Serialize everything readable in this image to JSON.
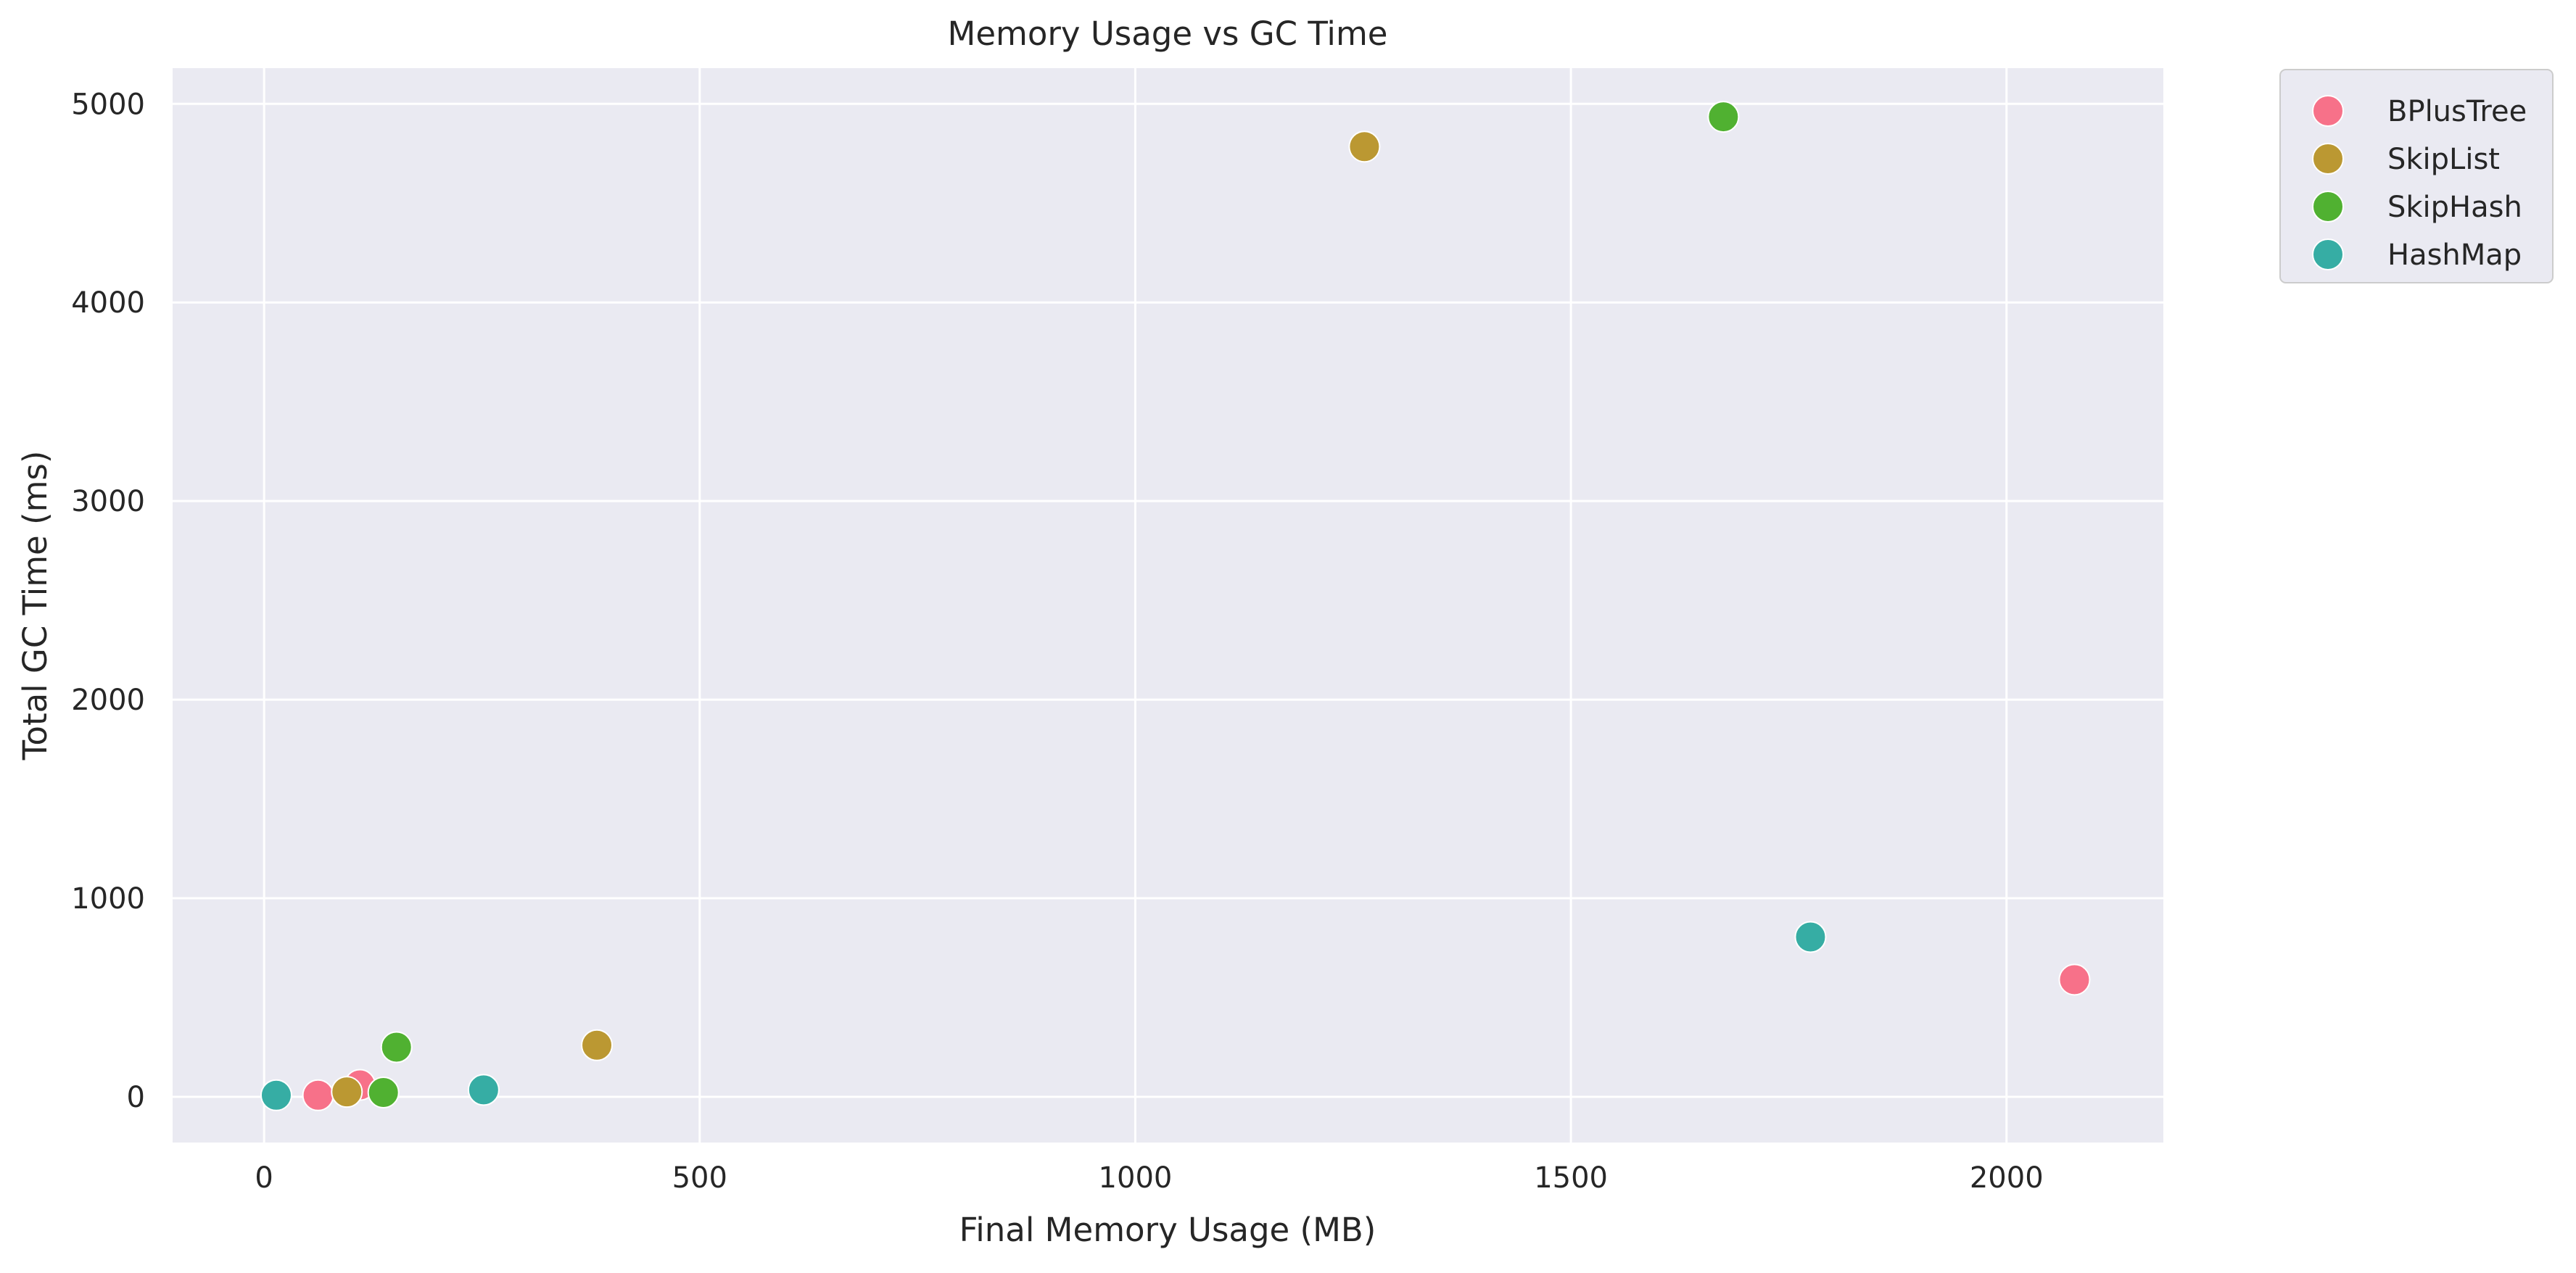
{
  "chart_data": {
    "type": "scatter",
    "title": "Memory Usage vs GC Time",
    "xlabel": "Final Memory Usage (MB)",
    "ylabel": "Total GC Time (ms)",
    "xlim": [
      -105,
      2180
    ],
    "ylim": [
      -230,
      5180
    ],
    "xticks": [
      0,
      500,
      1000,
      1500,
      2000
    ],
    "yticks": [
      0,
      1000,
      2000,
      3000,
      4000,
      5000
    ],
    "grid": true,
    "legend_position": "upper right, outside plot",
    "series": [
      {
        "name": "BPlusTree",
        "color": "#f77189",
        "points": [
          [
            62,
            8
          ],
          [
            110,
            60
          ],
          [
            2078,
            590
          ]
        ]
      },
      {
        "name": "SkipList",
        "color": "#bb9832",
        "points": [
          [
            95,
            25
          ],
          [
            382,
            260
          ],
          [
            1263,
            4785
          ]
        ]
      },
      {
        "name": "SkipHash",
        "color": "#50b131",
        "points": [
          [
            137,
            22
          ],
          [
            152,
            250
          ],
          [
            1675,
            4935
          ]
        ]
      },
      {
        "name": "HashMap",
        "color": "#36ada4",
        "points": [
          [
            14,
            8
          ],
          [
            252,
            35
          ],
          [
            1775,
            805
          ]
        ]
      }
    ]
  }
}
